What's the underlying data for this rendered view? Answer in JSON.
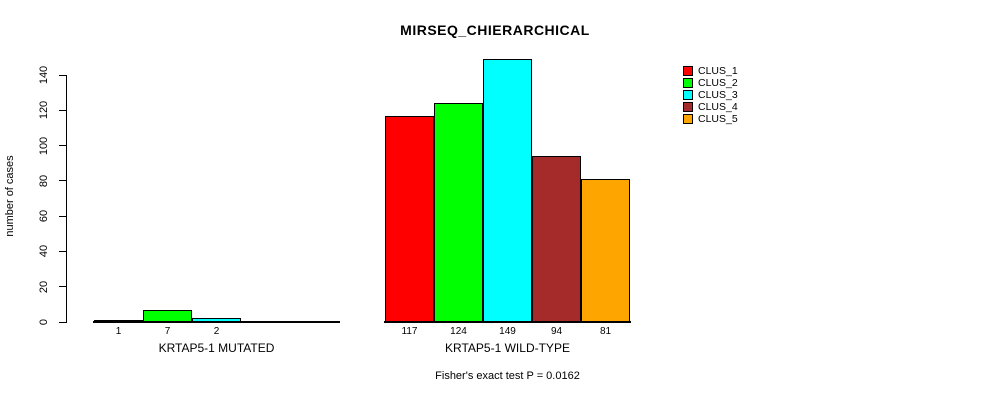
{
  "title": "MIRSEQ_CHIERARCHICAL",
  "footnote": "Fisher's exact test P = 0.0162",
  "y_axis": {
    "label": "number of cases",
    "ticks": [
      0,
      20,
      40,
      60,
      80,
      100,
      120,
      140
    ]
  },
  "legend": {
    "entries": [
      {
        "label": "CLUS_1",
        "color": "#FF0000"
      },
      {
        "label": "CLUS_2",
        "color": "#00FF00"
      },
      {
        "label": "CLUS_3",
        "color": "#00FFFF"
      },
      {
        "label": "CLUS_4",
        "color": "#A52A2A"
      },
      {
        "label": "CLUS_5",
        "color": "#FFA500"
      }
    ]
  },
  "chart_data": {
    "type": "bar",
    "title": "MIRSEQ_CHIERARCHICAL",
    "ylabel": "number of cases",
    "ylim": [
      0,
      140
    ],
    "yticks": [
      0,
      20,
      40,
      60,
      80,
      100,
      120,
      140
    ],
    "grid": false,
    "legend_position": "top-right",
    "series_names": [
      "CLUS_1",
      "CLUS_2",
      "CLUS_3",
      "CLUS_4",
      "CLUS_5"
    ],
    "series_colors": [
      "#FF0000",
      "#00FF00",
      "#00FFFF",
      "#A52A2A",
      "#FFA500"
    ],
    "groups": [
      {
        "label": "KRTAP5-1 MUTATED",
        "values": [
          1,
          7,
          2,
          0,
          0
        ],
        "bar_labels": [
          "1",
          "7",
          "2",
          "",
          ""
        ]
      },
      {
        "label": "KRTAP5-1 WILD-TYPE",
        "values": [
          117,
          124,
          149,
          94,
          81
        ],
        "bar_labels": [
          "117",
          "124",
          "149",
          "94",
          "81"
        ]
      }
    ],
    "annotation": "Fisher's exact test P = 0.0162"
  }
}
